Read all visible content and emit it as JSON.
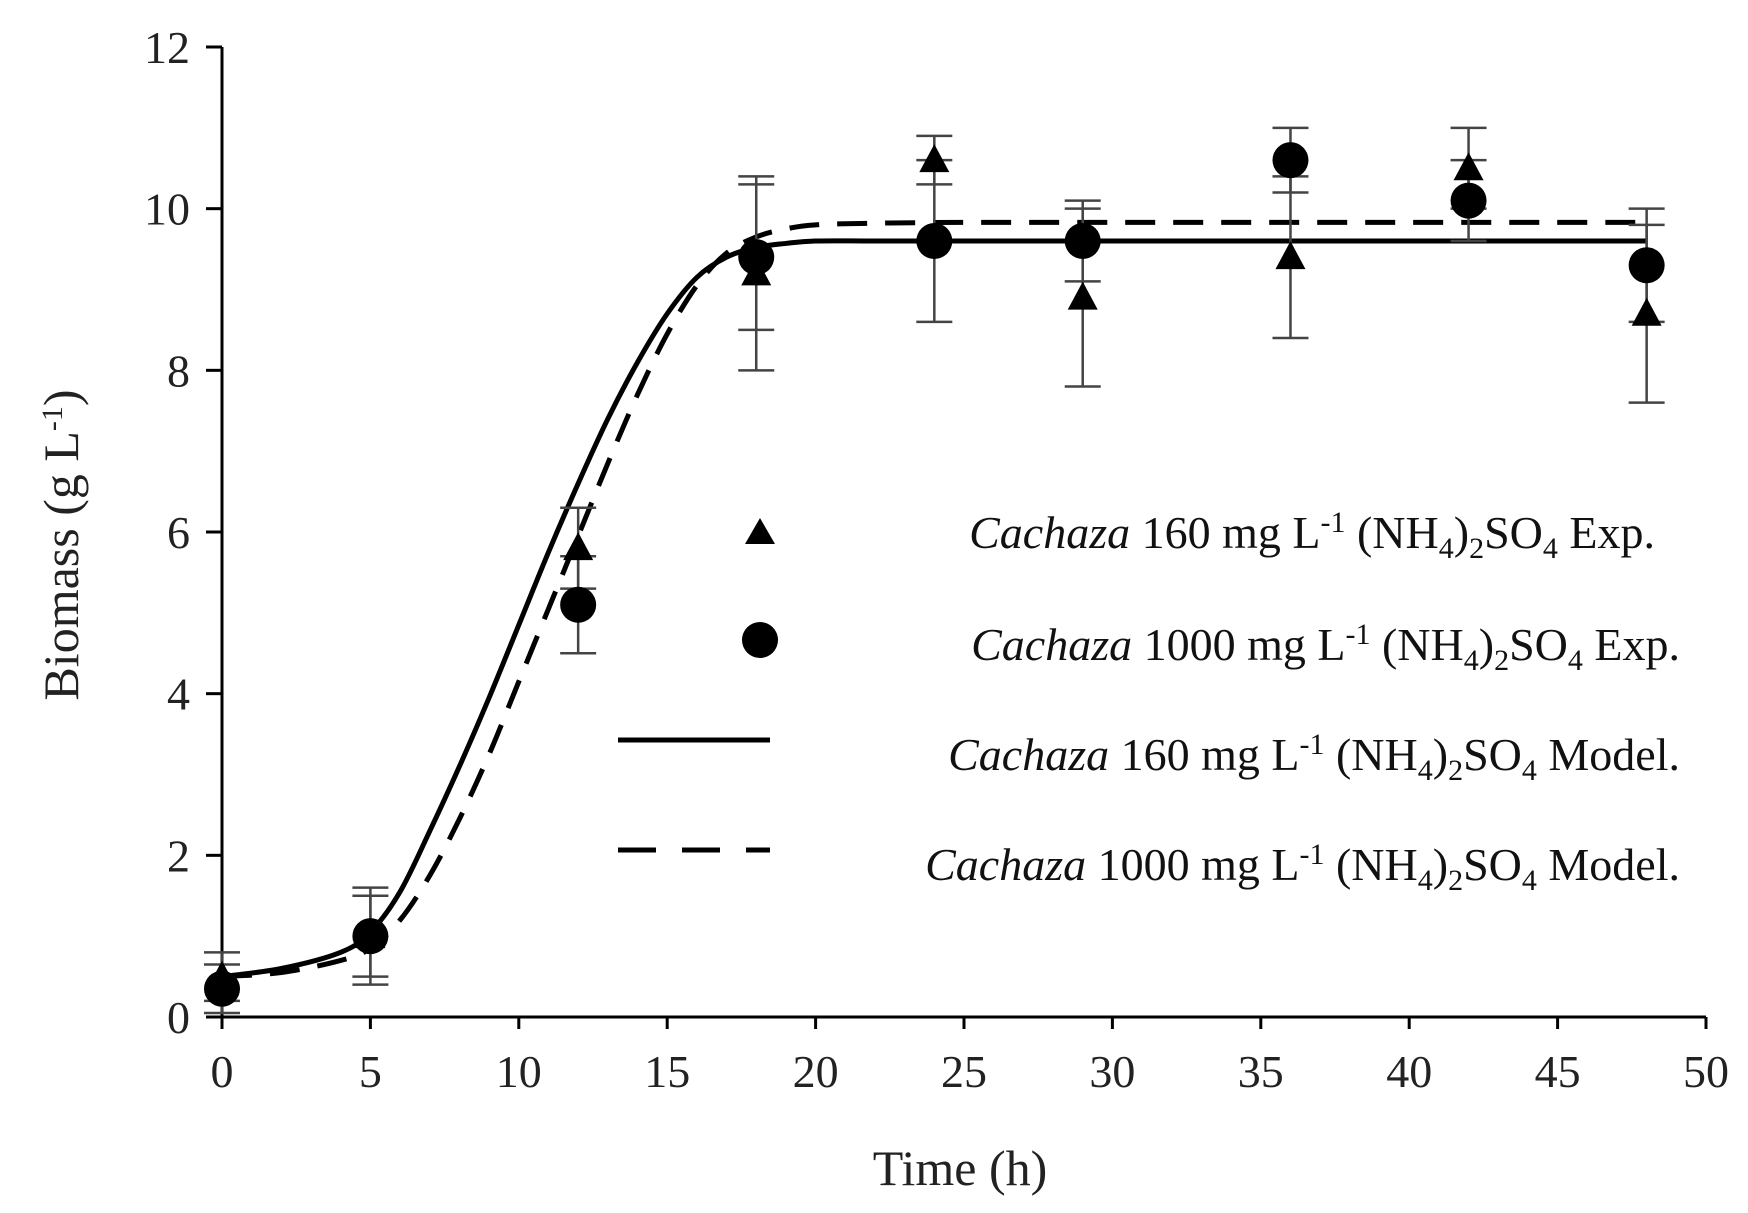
{
  "chart_data": {
    "type": "line",
    "title": "",
    "xlabel": "Time  (h)",
    "ylabel_main": "Biomass  (g L",
    "ylabel_sup": "-1",
    "ylabel_close": ")",
    "xlim": [
      0,
      50
    ],
    "ylim": [
      0,
      12
    ],
    "xticks": [
      0,
      5,
      10,
      15,
      20,
      25,
      30,
      35,
      40,
      45,
      50
    ],
    "yticks": [
      0,
      2,
      4,
      6,
      8,
      10,
      12
    ],
    "xtick_labels": [
      "0",
      "5",
      "10",
      "15",
      "20",
      "25",
      "30",
      "35",
      "40",
      "45",
      "50"
    ],
    "ytick_labels": [
      "0",
      "2",
      "4",
      "6",
      "8",
      "10",
      "12"
    ],
    "grid": false,
    "legend_position": "center-right",
    "experimental_series": [
      {
        "name": "Cachaza 160 mg L-1 (NH4)2SO4 Exp.",
        "marker": "triangle",
        "x": [
          0,
          5,
          12,
          18,
          24,
          29,
          36,
          42,
          48
        ],
        "y": [
          0.5,
          1.0,
          5.8,
          9.2,
          10.6,
          8.9,
          9.4,
          10.5,
          8.7
        ],
        "err": [
          0.3,
          0.6,
          0.5,
          1.2,
          0.3,
          1.1,
          1.0,
          0.5,
          1.1
        ]
      },
      {
        "name": "Cachaza 1000 mg L-1 (NH4)2SO4 Exp.",
        "marker": "circle",
        "x": [
          0,
          5,
          12,
          18,
          24,
          29,
          36,
          42,
          48
        ],
        "y": [
          0.35,
          1.0,
          5.1,
          9.4,
          9.6,
          9.6,
          10.6,
          10.1,
          9.3
        ],
        "err": [
          0.3,
          0.5,
          0.6,
          0.9,
          1.0,
          0.5,
          0.4,
          0.5,
          0.7
        ]
      }
    ],
    "model_series": [
      {
        "name": "Cachaza 160 mg L-1 (NH4)2SO4  Model.",
        "style": "solid",
        "x": [
          0,
          2,
          4,
          5,
          6,
          7,
          8,
          9,
          10,
          11,
          12,
          13,
          14,
          15,
          16,
          17,
          18,
          19,
          20,
          22,
          25,
          30,
          35,
          40,
          45,
          48
        ],
        "y": [
          0.5,
          0.6,
          0.8,
          1.05,
          1.55,
          2.3,
          3.1,
          3.95,
          4.85,
          5.75,
          6.6,
          7.4,
          8.1,
          8.7,
          9.15,
          9.4,
          9.52,
          9.57,
          9.6,
          9.6,
          9.6,
          9.6,
          9.6,
          9.6,
          9.6,
          9.6
        ]
      },
      {
        "name": "Cachaza 1000 mg L-1 (NH4)2SO4  Model.",
        "style": "dashed",
        "x": [
          0,
          2,
          4,
          5,
          6,
          7,
          8,
          9,
          10,
          11,
          12,
          13,
          14,
          15,
          16,
          17,
          18,
          19,
          20,
          22,
          25,
          30,
          35,
          40,
          45,
          48
        ],
        "y": [
          0.5,
          0.55,
          0.7,
          0.85,
          1.2,
          1.75,
          2.45,
          3.25,
          4.15,
          5.05,
          5.95,
          6.85,
          7.7,
          8.45,
          9.05,
          9.45,
          9.65,
          9.75,
          9.8,
          9.82,
          9.83,
          9.83,
          9.83,
          9.83,
          9.83,
          9.83
        ]
      }
    ],
    "legend": [
      {
        "italic": "Cachaza",
        "text1": " 160 mg L",
        "sup": "-1",
        "text2": " (NH",
        "sub1": "4",
        "text3": ")",
        "sub2": "2",
        "text4": "SO",
        "sub3": "4",
        "text5": " Exp."
      },
      {
        "italic": "Cachaza",
        "text1": " 1000 mg L",
        "sup": "-1",
        "text2": " (NH",
        "sub1": "4",
        "text3": ")",
        "sub2": "2",
        "text4": "SO",
        "sub3": "4",
        "text5": " Exp."
      },
      {
        "italic": "Cachaza",
        "text1": " 160 mg L",
        "sup": "-1",
        "text2": " (NH",
        "sub1": "4",
        "text3": ")",
        "sub2": "2",
        "text4": "SO",
        "sub3": "4",
        "text5": "  Model."
      },
      {
        "italic": "Cachaza",
        "text1": " 1000 mg L",
        "sup": "-1",
        "text2": " (NH",
        "sub1": "4",
        "text3": ")",
        "sub2": "2",
        "text4": "SO",
        "sub3": "4",
        "text5": "  Model."
      }
    ]
  }
}
